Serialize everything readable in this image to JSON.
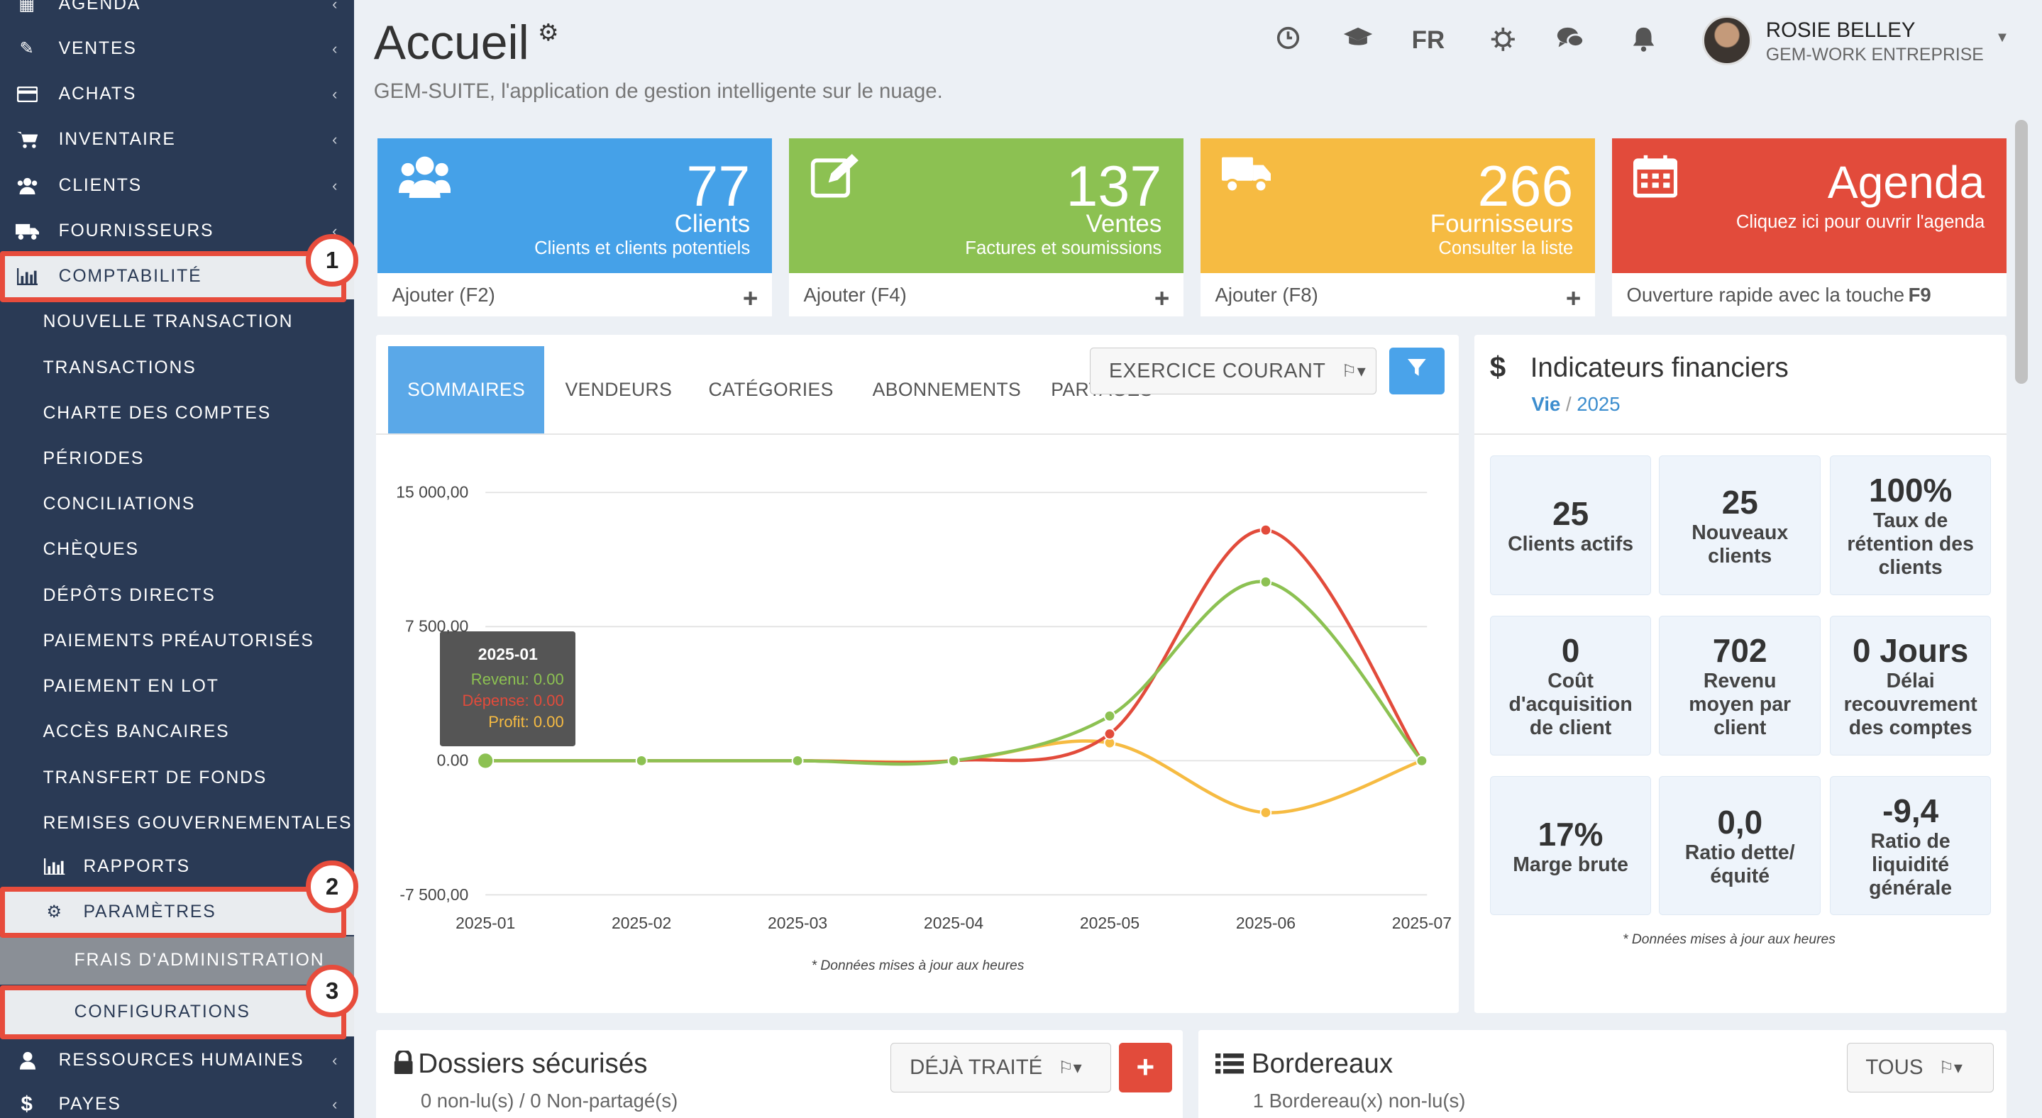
{
  "sidebar": {
    "items": [
      {
        "icon": "calendar-grid-icon",
        "label": "AGENDA"
      },
      {
        "icon": "edit-icon",
        "label": "VENTES"
      },
      {
        "icon": "credit-card-icon",
        "label": "ACHATS"
      },
      {
        "icon": "cart-icon",
        "label": "INVENTAIRE"
      },
      {
        "icon": "users-icon",
        "label": "CLIENTS"
      },
      {
        "icon": "truck-icon",
        "label": "FOURNISSEURS"
      },
      {
        "icon": "bar-chart-icon",
        "label": "COMPTABILITÉ"
      }
    ],
    "sub_items": [
      "NOUVELLE TRANSACTION",
      "TRANSACTIONS",
      "CHARTE DES COMPTES",
      "PÉRIODES",
      "CONCILIATIONS",
      "CHÈQUES",
      "DÉPÔTS DIRECTS",
      "PAIEMENTS PRÉAUTORISÉS",
      "PAIEMENT EN LOT",
      "ACCÈS BANCAIRES",
      "TRANSFERT DE FONDS",
      "REMISES GOUVERNEMENTALES"
    ],
    "rapports": "RAPPORTS",
    "parametres": "PARAMÈTRES",
    "frais": "FRAIS D'ADMINISTRATION",
    "configurations": "CONFIGURATIONS",
    "rh": "RESSOURCES HUMAINES",
    "payes": "PAYES",
    "badges": [
      "1",
      "2",
      "3"
    ]
  },
  "header": {
    "title": "Accueil",
    "subtitle": "GEM-SUITE, l'application de gestion intelligente sur le nuage.",
    "lang": "FR",
    "user_name": "ROSIE BELLEY",
    "user_org": "GEM-WORK ENTREPRISE"
  },
  "cards": [
    {
      "color": "#45a1e8",
      "value": "77",
      "label": "Clients",
      "sub": "Clients et clients potentiels",
      "action": "Ajouter (F2)"
    },
    {
      "color": "#8cc152",
      "value": "137",
      "label": "Ventes",
      "sub": "Factures et soumissions",
      "action": "Ajouter (F4)"
    },
    {
      "color": "#f6bb42",
      "value": "266",
      "label": "Fournisseurs",
      "sub": "Consulter la liste",
      "action": "Ajouter (F8)"
    },
    {
      "color": "#e24b3b",
      "value": "Agenda",
      "label": "",
      "sub": "Cliquez ici pour ouvrir l'agenda",
      "action": "Ouverture rapide avec la touche ",
      "action_key": "F9"
    }
  ],
  "chart_panel": {
    "tabs": [
      "SOMMAIRES",
      "VENDEURS",
      "CATÉGORIES",
      "ABONNEMENTS",
      "PARTAGES"
    ],
    "exercise_button": "EXERCICE COURANT",
    "note": "* Données mises à jour aux heures",
    "tooltip": {
      "title": "2025-01",
      "revenu": "Revenu: 0.00",
      "depense": "Dépense: 0.00",
      "profit": "Profit: 0.00"
    }
  },
  "chart_data": {
    "type": "line",
    "x": [
      "2025-01",
      "2025-02",
      "2025-03",
      "2025-04",
      "2025-05",
      "2025-06",
      "2025-07"
    ],
    "y_ticks": [
      "15 000,00",
      "7 500,00",
      "0.00",
      "-7 500,00"
    ],
    "ylim": [
      -7500,
      15000
    ],
    "series": [
      {
        "name": "Revenu",
        "color": "#8cc152",
        "values": [
          0,
          0,
          0,
          0,
          2500,
          10000,
          0
        ]
      },
      {
        "name": "Dépense",
        "color": "#e24b3b",
        "values": [
          0,
          0,
          0,
          0,
          1500,
          12900,
          0
        ]
      },
      {
        "name": "Profit",
        "color": "#f6bb42",
        "values": [
          0,
          0,
          0,
          0,
          1000,
          -2900,
          0
        ]
      }
    ]
  },
  "fin": {
    "title": "Indicateurs financiers",
    "link": "Vie",
    "year": "2025",
    "note": "* Données mises à jour aux heures",
    "kpis": [
      {
        "value": "25",
        "label": "Clients actifs"
      },
      {
        "value": "25",
        "label": "Nouveaux clients"
      },
      {
        "value": "100%",
        "label": "Taux de rétention des clients"
      },
      {
        "value": "0",
        "label": "Coût d'acquisition de client"
      },
      {
        "value": "702",
        "label": "Revenu moyen par client"
      },
      {
        "value": "0 Jours",
        "label": "Délai recouvrement des comptes"
      },
      {
        "value": "17%",
        "label": "Marge brute"
      },
      {
        "value": "0,0",
        "label": "Ratio dette/ équité"
      },
      {
        "value": "-9,4",
        "label": "Ratio de liquidité générale"
      }
    ]
  },
  "dossiers": {
    "title": "Dossiers sécurisés",
    "sub": "0 non-lu(s) / 0 Non-partagé(s)",
    "button": "DÉJÀ TRAITÉ"
  },
  "bordereaux": {
    "title": "Bordereaux",
    "sub": "1 Bordereau(x) non-lu(s)",
    "button": "TOUS"
  }
}
